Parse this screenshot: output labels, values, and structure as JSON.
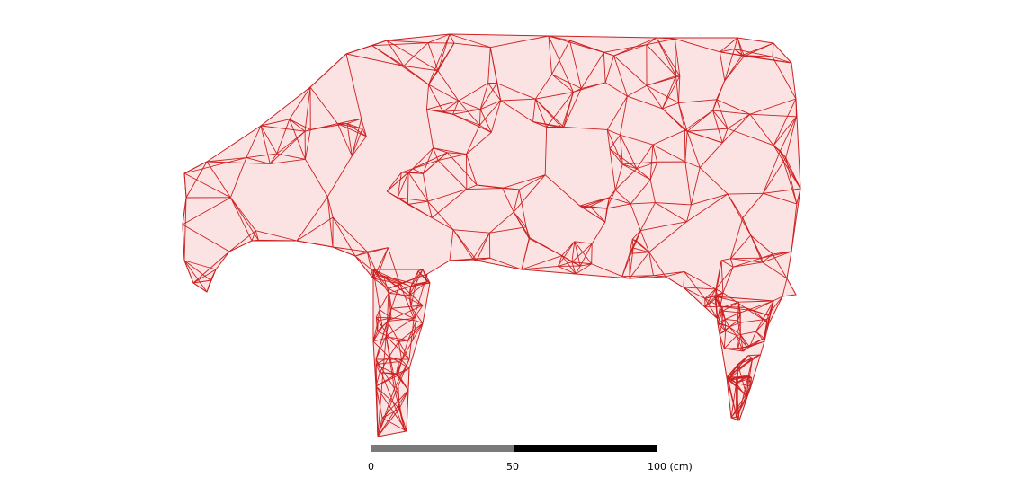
{
  "model": {
    "subject": "cow",
    "render_style": "wireframe",
    "colors": {
      "edge": "#cc2020",
      "fill": "#fbe3e3",
      "background": "#ffffff"
    }
  },
  "scale_bar": {
    "labels": [
      "0",
      "50",
      "100 (cm)"
    ],
    "colors": {
      "segment_a": "#7a7a7a",
      "segment_b": "#000000"
    }
  }
}
